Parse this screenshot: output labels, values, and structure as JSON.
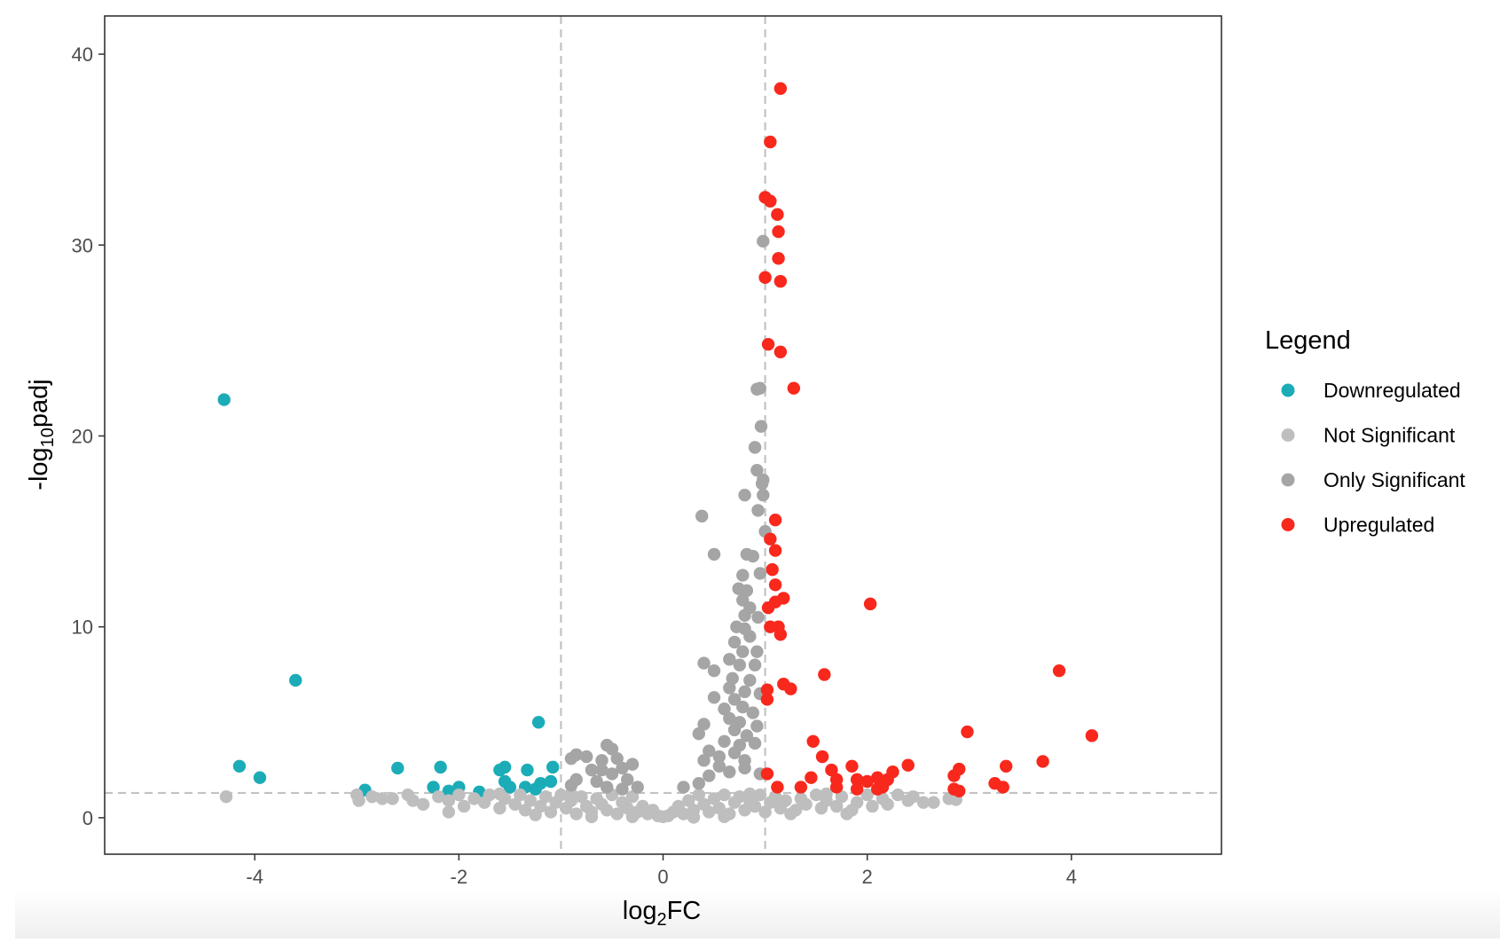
{
  "chart_data": {
    "type": "scatter",
    "xlabel_parts": [
      "log",
      "2",
      "FC"
    ],
    "ylabel_parts": [
      "-log",
      "10",
      "padj"
    ],
    "legend_title": "Legend",
    "legend_position": "right",
    "xlim": [
      -5.47,
      5.47
    ],
    "ylim": [
      -1.91,
      42.0
    ],
    "xticks": [
      -4,
      -2,
      0,
      2,
      4
    ],
    "yticks": [
      0,
      10,
      20,
      30,
      40
    ],
    "vlines": [
      -1,
      1
    ],
    "hline": 1.3,
    "grid": false,
    "series": [
      {
        "name": "Downregulated",
        "color": "#1bacb7",
        "x": [
          -4.3,
          -3.6,
          -4.15,
          -3.95,
          -2.92,
          -2.6,
          -2.18,
          -2.25,
          -2.1,
          -2.0,
          -1.6,
          -1.55,
          -1.55,
          -1.5,
          -1.33,
          -1.22,
          -1.08,
          -1.2,
          -1.35,
          -1.1,
          -1.8,
          -1.25
        ],
        "y": [
          21.9,
          7.2,
          2.7,
          2.1,
          1.45,
          2.6,
          2.65,
          1.6,
          1.4,
          1.6,
          2.5,
          2.65,
          1.9,
          1.6,
          2.5,
          5.0,
          2.65,
          1.8,
          1.6,
          1.9,
          1.35,
          1.5
        ]
      },
      {
        "name": "Not Significant",
        "color": "#bebebe",
        "x": [
          -4.28,
          -3.0,
          -2.98,
          -2.85,
          -2.75,
          -2.65,
          -2.5,
          -2.45,
          -2.35,
          -2.2,
          -2.1,
          -2.0,
          -1.95,
          -1.85,
          -1.75,
          -1.7,
          -1.6,
          -1.55,
          -1.45,
          -1.4,
          -1.35,
          -1.3,
          -1.2,
          -1.15,
          -1.1,
          -1.05,
          -1.0,
          -0.95,
          -0.9,
          -0.85,
          -0.8,
          -0.75,
          -0.7,
          -0.65,
          -0.6,
          -0.55,
          -0.5,
          -0.45,
          -0.4,
          -0.35,
          -0.3,
          -0.25,
          -0.2,
          -0.15,
          -0.1,
          -0.05,
          0.0,
          0.05,
          0.1,
          0.15,
          0.2,
          0.25,
          0.3,
          0.35,
          0.4,
          0.45,
          0.5,
          0.55,
          0.6,
          0.65,
          0.7,
          0.75,
          0.8,
          0.85,
          0.9,
          0.95,
          1.0,
          1.05,
          1.1,
          1.15,
          1.2,
          1.3,
          1.35,
          1.4,
          1.5,
          1.55,
          1.6,
          1.7,
          1.75,
          1.85,
          1.9,
          2.0,
          2.05,
          2.15,
          2.2,
          2.3,
          2.4,
          2.45,
          2.55,
          2.65,
          2.8,
          2.87,
          -1.25,
          -0.7,
          0.6,
          1.25,
          -0.3,
          0.3,
          -2.1,
          1.8,
          -0.9,
          0.85,
          -1.6,
          1.6
        ],
        "y": [
          1.1,
          1.2,
          0.9,
          1.1,
          1.0,
          1.0,
          1.2,
          0.9,
          0.7,
          1.1,
          0.9,
          1.2,
          0.6,
          1.0,
          0.8,
          1.2,
          0.5,
          1.0,
          0.7,
          1.2,
          0.4,
          0.9,
          0.6,
          1.1,
          0.3,
          0.8,
          1.2,
          0.5,
          0.9,
          0.2,
          1.1,
          0.6,
          0.3,
          1.0,
          0.7,
          0.4,
          1.2,
          0.2,
          0.8,
          0.5,
          1.1,
          0.3,
          0.6,
          0.2,
          0.4,
          0.1,
          0.05,
          0.1,
          0.3,
          0.6,
          0.2,
          0.9,
          0.4,
          1.2,
          0.7,
          0.3,
          1.0,
          0.5,
          1.2,
          0.2,
          0.8,
          1.1,
          0.4,
          0.9,
          0.6,
          1.2,
          0.3,
          0.8,
          1.1,
          0.5,
          0.9,
          0.4,
          1.0,
          0.7,
          1.2,
          0.5,
          0.9,
          0.6,
          1.1,
          0.4,
          0.8,
          1.2,
          0.6,
          1.0,
          0.7,
          1.2,
          0.9,
          1.1,
          0.8,
          0.8,
          1.0,
          0.95,
          0.15,
          0.05,
          0.05,
          0.2,
          0.05,
          0.02,
          0.3,
          0.2,
          1.25,
          1.25,
          1.25,
          1.25
        ]
      },
      {
        "name": "Only Significant",
        "color": "#a5a5a5",
        "x": [
          0.98,
          0.95,
          0.92,
          0.96,
          0.9,
          0.92,
          0.98,
          0.97,
          0.98,
          0.8,
          0.93,
          1.0,
          0.38,
          0.5,
          0.82,
          0.88,
          0.95,
          0.78,
          0.74,
          0.82,
          0.78,
          0.85,
          0.8,
          0.93,
          0.72,
          0.8,
          0.85,
          0.7,
          0.78,
          0.92,
          0.65,
          0.4,
          0.75,
          0.9,
          0.5,
          0.68,
          0.85,
          0.65,
          0.8,
          0.95,
          0.5,
          0.7,
          0.78,
          0.6,
          0.88,
          0.65,
          0.75,
          0.92,
          0.4,
          0.35,
          0.7,
          0.82,
          0.6,
          0.75,
          0.9,
          0.45,
          0.55,
          0.7,
          0.8,
          0.4,
          0.55,
          0.65,
          0.45,
          0.8,
          0.95,
          0.35,
          0.2,
          -0.9,
          -0.85,
          -0.75,
          -0.55,
          -0.5,
          -0.6,
          -0.45,
          -0.4,
          -0.5,
          -0.7,
          -0.35,
          -0.65,
          -0.85,
          -0.9,
          -0.25,
          -0.55,
          -0.4,
          -0.3,
          -0.6
        ],
        "y": [
          30.2,
          22.5,
          22.45,
          20.5,
          19.4,
          18.2,
          17.7,
          17.5,
          16.9,
          16.9,
          16.1,
          15.0,
          15.8,
          13.8,
          13.8,
          13.7,
          12.8,
          12.7,
          12.0,
          11.9,
          11.4,
          11.0,
          10.6,
          10.5,
          10.0,
          9.9,
          9.5,
          9.2,
          8.7,
          8.7,
          8.3,
          8.1,
          8.0,
          8.0,
          7.7,
          7.3,
          7.2,
          6.8,
          6.6,
          6.5,
          6.3,
          6.2,
          5.8,
          5.7,
          5.5,
          5.2,
          5.0,
          4.8,
          4.9,
          4.4,
          4.6,
          4.3,
          4.0,
          3.8,
          3.9,
          3.5,
          3.2,
          3.4,
          3.0,
          3.0,
          2.7,
          2.4,
          2.2,
          2.6,
          2.3,
          1.8,
          1.6,
          3.1,
          3.3,
          3.2,
          3.8,
          3.6,
          3.0,
          3.1,
          2.6,
          2.3,
          2.5,
          2.0,
          1.9,
          2.0,
          1.7,
          1.6,
          1.6,
          1.5,
          2.8,
          2.5
        ]
      },
      {
        "name": "Upregulated",
        "color": "#f8281c",
        "x": [
          1.15,
          1.05,
          1.0,
          1.05,
          1.12,
          1.13,
          1.13,
          1.0,
          1.15,
          1.03,
          1.15,
          1.28,
          1.1,
          1.05,
          1.1,
          1.07,
          1.1,
          1.18,
          1.1,
          1.03,
          1.05,
          1.13,
          1.15,
          2.03,
          1.58,
          1.18,
          1.25,
          1.02,
          1.02,
          3.88,
          4.2,
          2.98,
          3.72,
          3.36,
          2.9,
          2.85,
          1.47,
          1.56,
          1.65,
          1.85,
          2.4,
          2.25,
          1.45,
          1.7,
          1.9,
          2.0,
          2.1,
          2.15,
          2.2,
          1.02,
          1.12,
          1.35,
          1.7,
          3.25,
          3.33,
          2.85,
          2.9,
          1.9,
          2.1
        ],
        "y": [
          38.2,
          35.4,
          32.5,
          32.3,
          31.6,
          30.7,
          29.3,
          28.3,
          28.1,
          24.8,
          24.4,
          22.5,
          15.6,
          14.6,
          14.0,
          13.0,
          12.2,
          11.5,
          11.3,
          11.0,
          10.0,
          10.0,
          9.6,
          11.2,
          7.5,
          7.0,
          6.75,
          6.7,
          6.2,
          7.7,
          4.3,
          4.5,
          2.95,
          2.7,
          2.55,
          2.2,
          4.0,
          3.2,
          2.5,
          2.7,
          2.75,
          2.4,
          2.1,
          2.0,
          2.0,
          1.9,
          2.1,
          1.6,
          2.0,
          2.3,
          1.6,
          1.6,
          1.6,
          1.8,
          1.6,
          1.5,
          1.4,
          1.5,
          1.5
        ]
      }
    ]
  }
}
